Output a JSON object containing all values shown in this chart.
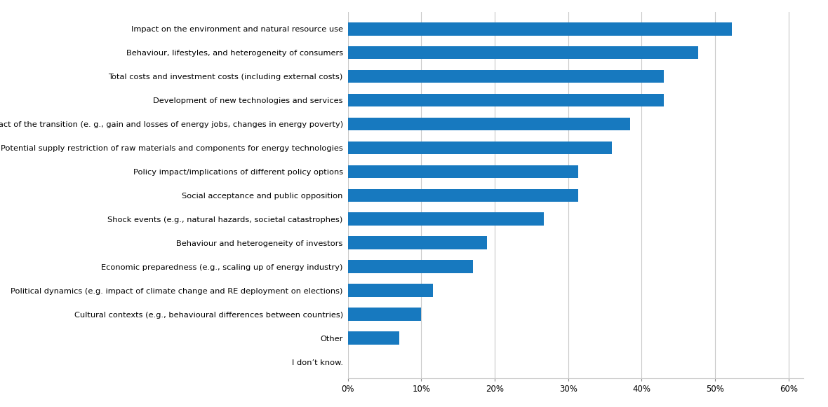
{
  "categories": [
    "I don’t know.",
    "Other",
    "Cultural contexts (e.g., behavioural differences between countries)",
    "Political dynamics (e.g. impact of climate change and RE deployment on elections)",
    "Economic preparedness (e.g., scaling up of energy industry)",
    "Behaviour and heterogeneity of investors",
    "Shock events (e.g., natural hazards, societal catastrophes)",
    "Social acceptance and public opposition",
    "Policy impact/implications of different policy options",
    "Potential supply restriction of raw materials and components for energy technologies",
    "Social impact of the transition (e. g., gain and losses of energy jobs, changes in energy poverty)",
    "Development of new technologies and services",
    "Total costs and investment costs (including external costs)",
    "Behaviour, lifestyles, and heterogeneity of consumers",
    "Impact on the environment and natural resource use"
  ],
  "values": [
    0.0,
    0.07,
    0.1,
    0.116,
    0.17,
    0.19,
    0.267,
    0.314,
    0.314,
    0.36,
    0.384,
    0.43,
    0.43,
    0.477,
    0.523
  ],
  "bar_color": "#1779BF",
  "xlim": [
    0,
    0.62
  ],
  "xtick_labels": [
    "0%",
    "10%",
    "20%",
    "30%",
    "40%",
    "50%",
    "60%"
  ],
  "xtick_values": [
    0.0,
    0.1,
    0.2,
    0.3,
    0.4,
    0.5,
    0.6
  ],
  "background_color": "#FFFFFF",
  "grid_color": "#C8C8C8",
  "bar_height": 0.55,
  "label_fontsize": 8.2,
  "tick_fontsize": 8.5
}
